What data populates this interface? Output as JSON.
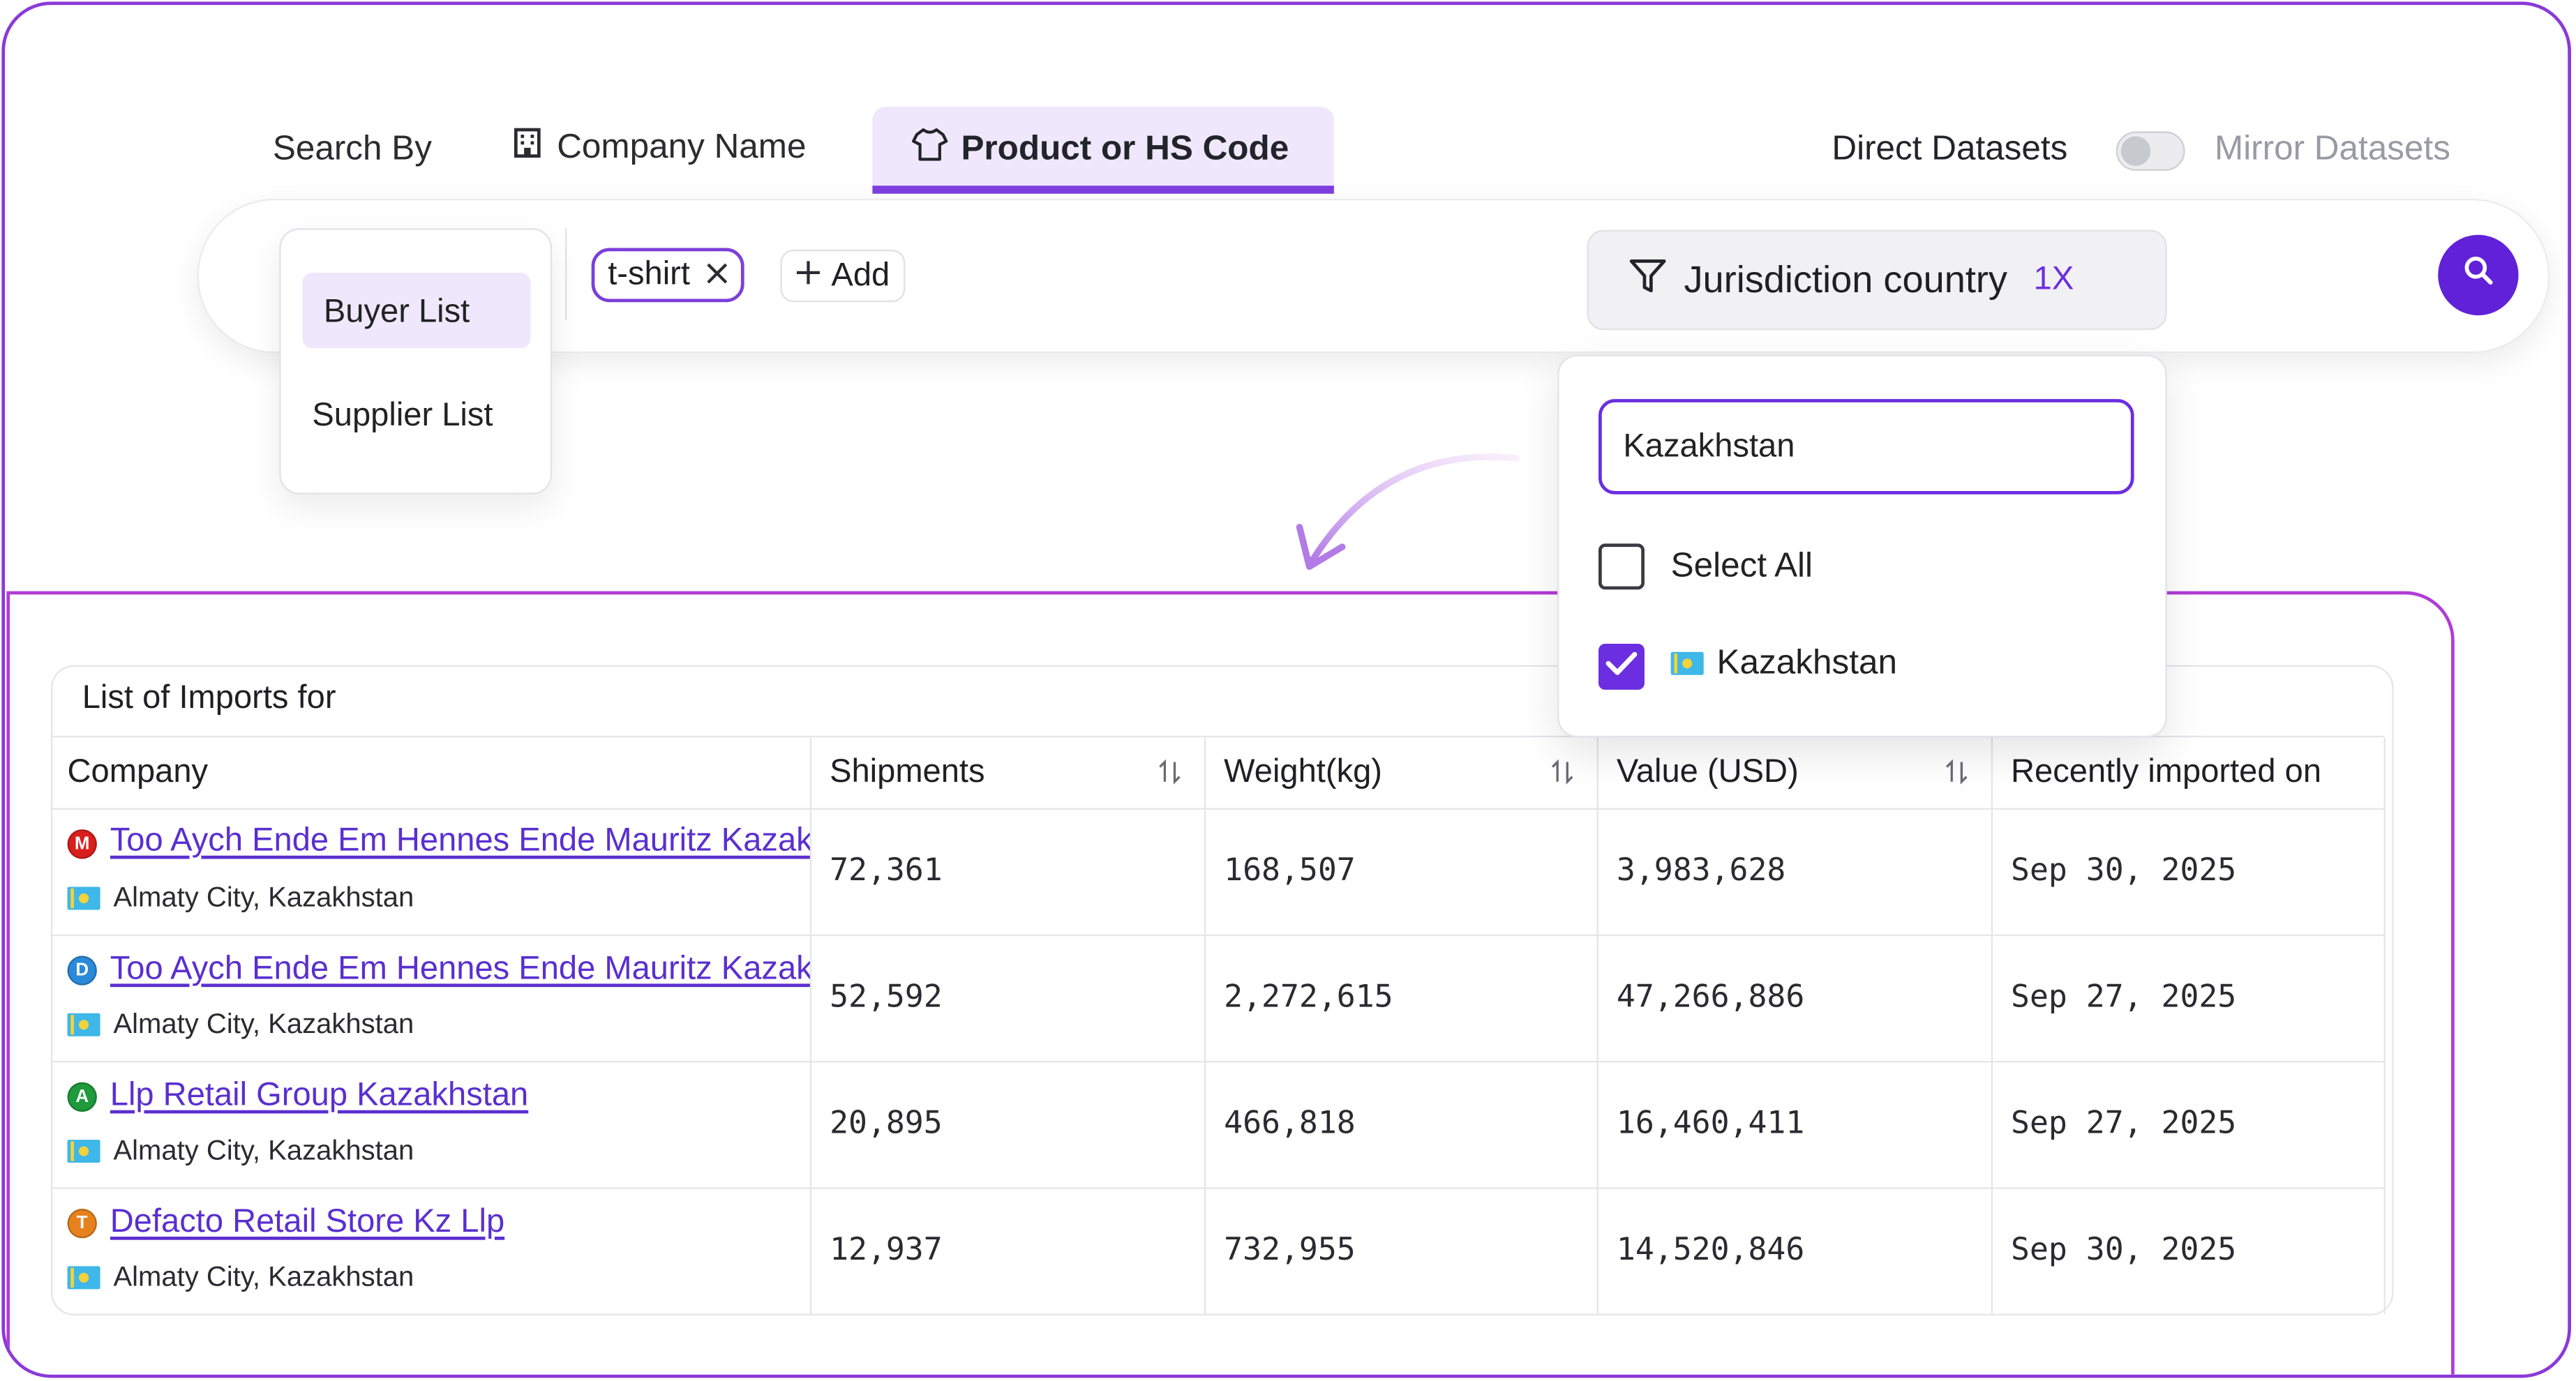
{
  "search_by": {
    "label": "Search By",
    "tabs": [
      {
        "label": "Company Name",
        "icon": "building-icon",
        "active": false
      },
      {
        "label": "Product or HS Code",
        "icon": "tshirt-icon",
        "active": true
      }
    ],
    "direct_datasets": "Direct Datasets",
    "mirror_datasets": "Mirror Datasets"
  },
  "list_type_menu": {
    "items": [
      "Buyer List",
      "Supplier List"
    ],
    "selected": "Buyer List"
  },
  "search": {
    "chip": "t-shirt",
    "add_label": "Add",
    "filter_label": "Jurisdiction country",
    "filter_count": "1X"
  },
  "country_dropdown": {
    "input_value": "Kazakhstan",
    "select_all": "Select All",
    "options": [
      {
        "label": "Kazakhstan",
        "checked": true
      }
    ]
  },
  "results": {
    "title": "List of Imports for",
    "columns": [
      "Company",
      "Shipments",
      "Weight(kg)",
      "Value (USD)",
      "Recently imported on"
    ],
    "rows": [
      {
        "badge": "M",
        "badge_color": "#d91e1e",
        "company": "Too Aych Ende Em Hennes Ende Mauritz Kazakhstan",
        "location": "Almaty City, Kazakhstan",
        "shipments": "72,361",
        "weight": "168,507",
        "value": "3,983,628",
        "date": "Sep 30, 2025"
      },
      {
        "badge": "D",
        "badge_color": "#2a8ad9",
        "company": "Too Aych Ende Em Hennes Ende Mauritz Kazakhstan",
        "location": "Almaty City, Kazakhstan",
        "shipments": "52,592",
        "weight": "2,272,615",
        "value": "47,266,886",
        "date": "Sep 27, 2025"
      },
      {
        "badge": "A",
        "badge_color": "#1f9a3d",
        "company": "Llp Retail Group Kazakhstan",
        "location": "Almaty City, Kazakhstan",
        "shipments": "20,895",
        "weight": "466,818",
        "value": "16,460,411",
        "date": "Sep 27, 2025"
      },
      {
        "badge": "T",
        "badge_color": "#e6821e",
        "company": "Defacto Retail Store Kz Llp",
        "location": "Almaty City, Kazakhstan",
        "shipments": "12,937",
        "weight": "732,955",
        "value": "14,520,846",
        "date": "Sep 30, 2025"
      }
    ]
  },
  "colors": {
    "accent": "#6b2ee0",
    "search_button": "#6121d9",
    "border_gradient": "#b13bd6"
  }
}
